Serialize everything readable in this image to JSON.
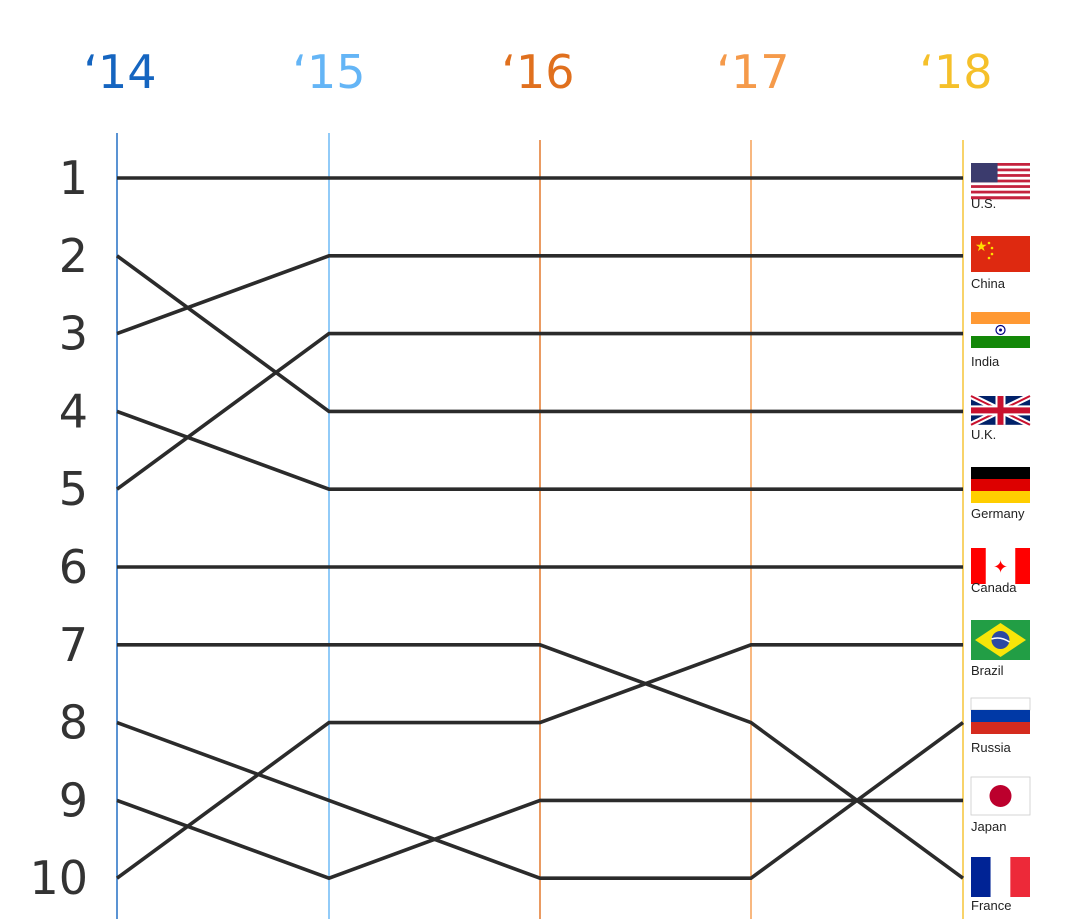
{
  "chart_data": {
    "type": "line",
    "x": [
      "‘14",
      "‘15",
      "‘16",
      "‘17",
      "‘18"
    ],
    "y_ticks": [
      "1",
      "2",
      "3",
      "4",
      "5",
      "6",
      "7",
      "8",
      "9",
      "10"
    ],
    "y_scale": "rank, 1 at top",
    "year_colors": [
      "#1565c0",
      "#64b5f6",
      "#e0701e",
      "#f59a4a",
      "#f5c02a"
    ],
    "line_color": "#2b2b2b",
    "series": [
      {
        "name": "U.S.",
        "flag": "us-flag-icon",
        "values": [
          1,
          1,
          1,
          1,
          1
        ]
      },
      {
        "name": "China",
        "flag": "china-flag-icon",
        "values": [
          3,
          2,
          2,
          2,
          2
        ]
      },
      {
        "name": "India",
        "flag": "india-flag-icon",
        "values": [
          5,
          3,
          3,
          3,
          3
        ]
      },
      {
        "name": "U.K.",
        "flag": "uk-flag-icon",
        "values": [
          2,
          4,
          4,
          4,
          4
        ]
      },
      {
        "name": "Germany",
        "flag": "germany-flag-icon",
        "values": [
          4,
          5,
          5,
          5,
          5
        ]
      },
      {
        "name": "Canada",
        "flag": "canada-flag-icon",
        "values": [
          6,
          6,
          6,
          6,
          6
        ]
      },
      {
        "name": "Brazil",
        "flag": "brazil-flag-icon",
        "values": [
          10,
          8,
          8,
          7,
          7
        ]
      },
      {
        "name": "Japan",
        "flag": "japan-flag-icon",
        "values": [
          9,
          10,
          9,
          9,
          9
        ]
      },
      {
        "name": "Russia",
        "flag": "russia-flag-icon",
        "values": [
          8,
          9,
          10,
          10,
          8
        ]
      },
      {
        "name": "France",
        "flag": "france-flag-icon",
        "values": [
          7,
          7,
          7,
          8,
          10
        ]
      }
    ]
  }
}
